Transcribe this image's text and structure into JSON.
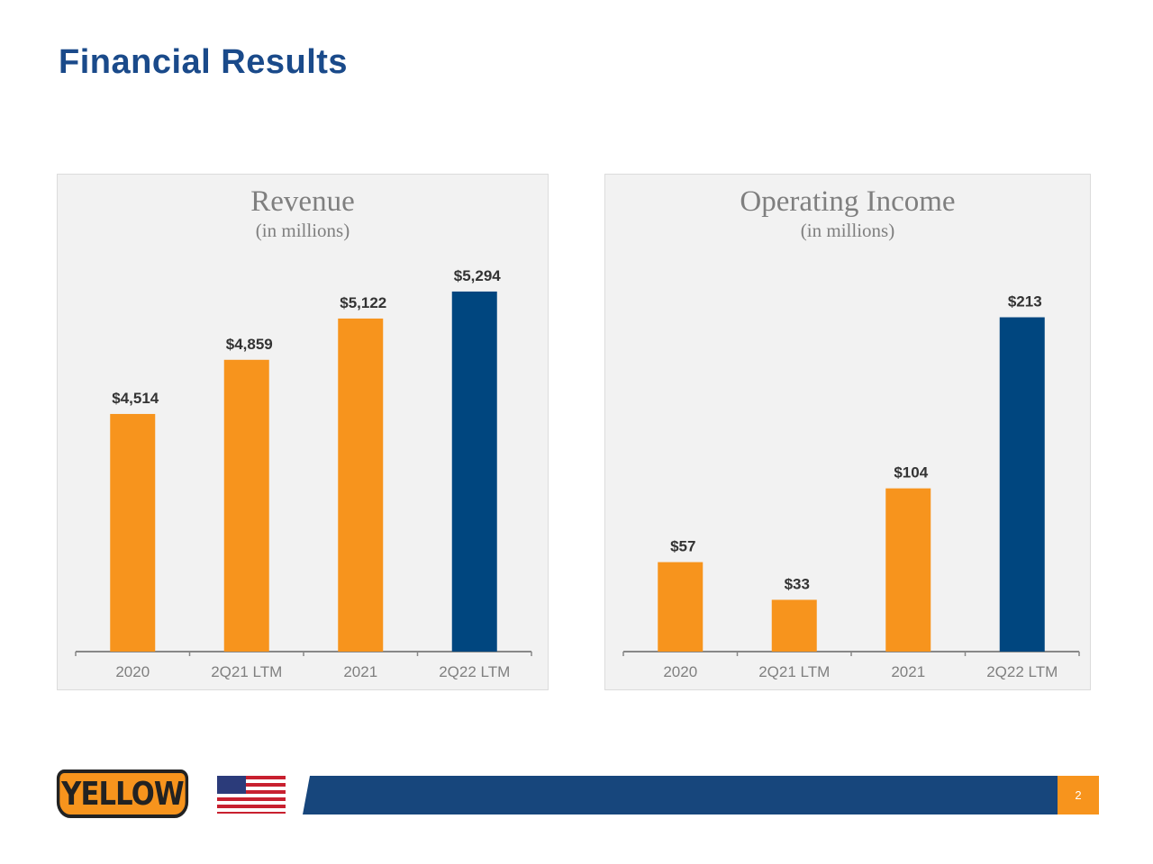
{
  "page": {
    "title": "Financial Results",
    "page_number": "2",
    "logo_text": "YELLOW"
  },
  "colors": {
    "orange": "#f7941d",
    "blue": "#00467f",
    "title": "#1a4a8a",
    "footer": "#17467c"
  },
  "chart_data": [
    {
      "type": "bar",
      "title": "Revenue",
      "subtitle": "(in millions)",
      "categories": [
        "2020",
        "2Q21 LTM",
        "2021",
        "2Q22 LTM"
      ],
      "values": [
        4514,
        4859,
        5122,
        5294
      ],
      "labels": [
        "$4,514",
        "$4,859",
        "$5,122",
        "$5,294"
      ],
      "bar_colors": [
        "#f7941d",
        "#f7941d",
        "#f7941d",
        "#00467f"
      ],
      "ylim": [
        3000,
        5500
      ],
      "grid": false
    },
    {
      "type": "bar",
      "title": "Operating Income",
      "subtitle": "(in millions)",
      "categories": [
        "2020",
        "2Q21 LTM",
        "2021",
        "2Q22 LTM"
      ],
      "values": [
        57,
        33,
        104,
        213
      ],
      "labels": [
        "$57",
        "$33",
        "$104",
        "$213"
      ],
      "bar_colors": [
        "#f7941d",
        "#f7941d",
        "#f7941d",
        "#00467f"
      ],
      "ylim": [
        0,
        250
      ],
      "grid": false
    }
  ]
}
